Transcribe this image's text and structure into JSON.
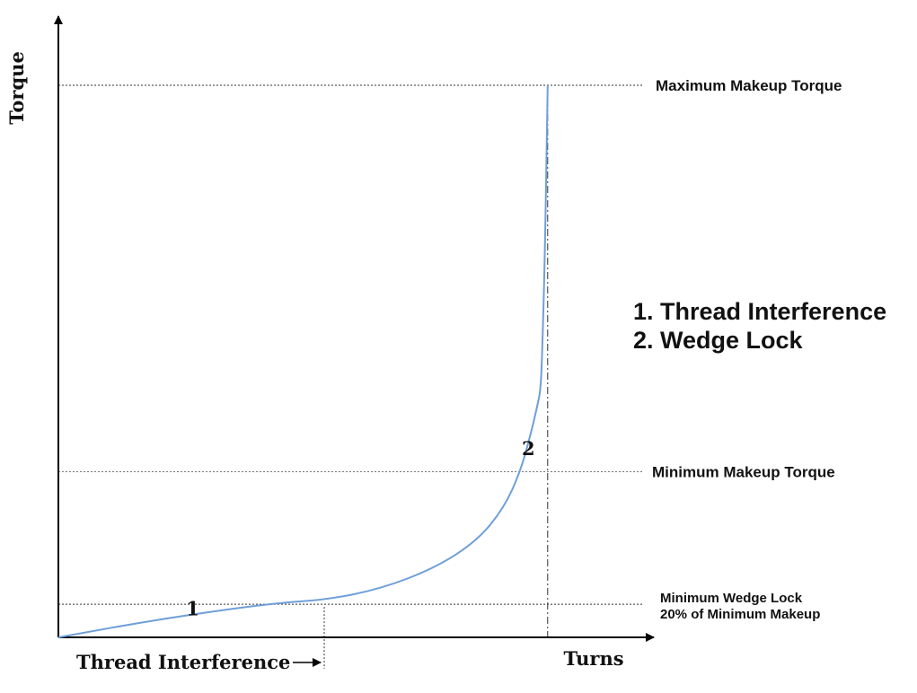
{
  "chart_data": {
    "type": "line",
    "title": "",
    "xlabel": "Turns",
    "ylabel": "Torque",
    "xlim": [
      0,
      100
    ],
    "ylim": [
      0,
      100
    ],
    "grid": false,
    "series": [
      {
        "values": [
          [
            0,
            0
          ],
          [
            20,
            3.5
          ],
          [
            40,
            6.2
          ],
          [
            50,
            6.8
          ],
          [
            60,
            8.8
          ],
          [
            70,
            12.5
          ],
          [
            78,
            17.5
          ],
          [
            83,
            23.5
          ],
          [
            86,
            30
          ],
          [
            88,
            37
          ],
          [
            89.2,
            42
          ],
          [
            89.8,
            45
          ],
          [
            90.1,
            52
          ],
          [
            90.6,
            70
          ],
          [
            91.1,
            100
          ]
        ]
      }
    ],
    "reference_lines": {
      "maximum_makeup_torque": {
        "label": "Maximum Makeup Torque",
        "y": 100
      },
      "minimum_makeup_torque": {
        "label": "Minimum Makeup Torque",
        "y": 30
      },
      "minimum_wedge_lock": {
        "label_line1": "Minimum Wedge Lock",
        "label_line2": "20% of Minimum Makeup",
        "y": 6
      },
      "thread_interference_x": {
        "label": "Thread Interference",
        "x": 49.5
      },
      "final_turns_x": {
        "x": 91.1
      }
    },
    "point_markers": [
      {
        "label": "1",
        "x": 25,
        "y": 4
      },
      {
        "label": "2",
        "x": 87.5,
        "y": 33
      }
    ],
    "legend": {
      "placement": "right",
      "items": [
        "1. Thread Interference",
        "2. Wedge Lock"
      ]
    }
  }
}
